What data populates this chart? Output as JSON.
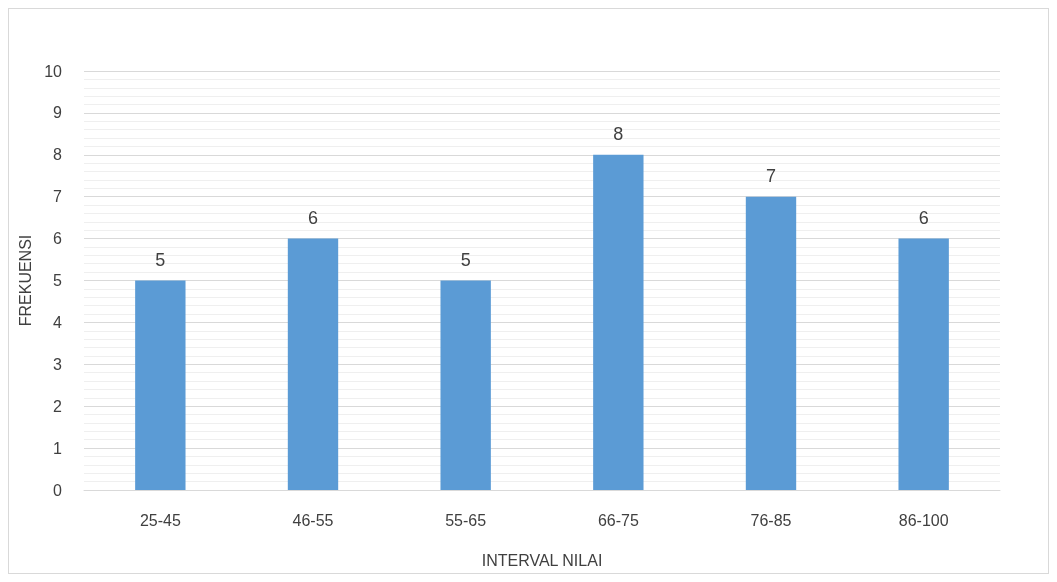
{
  "chart_data": {
    "type": "bar",
    "xlabel": "INTERVAL NILAI",
    "ylabel": "FREKUENSI",
    "categories": [
      "25-45",
      "46-55",
      "55-65",
      "66-75",
      "76-85",
      "86-100"
    ],
    "values": [
      5,
      6,
      5,
      8,
      7,
      6
    ],
    "color": "#5b9bd5",
    "ylim": [
      0,
      10
    ],
    "yticks": [
      0,
      1,
      2,
      3,
      4,
      5,
      6,
      7,
      8,
      9,
      10
    ],
    "grid": "y",
    "data_labels": true
  }
}
